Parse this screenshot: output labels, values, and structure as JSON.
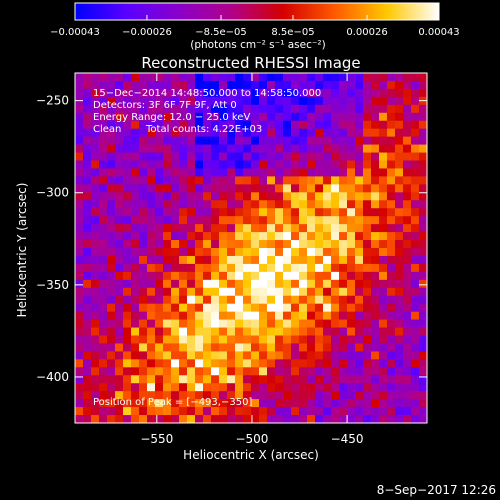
{
  "chart_data": {
    "type": "heatmap",
    "title": "Reconstructed RHESSI Image",
    "xlabel": "Heliocentric X (arcsec)",
    "ylabel": "Heliocentric Y (arcsec)",
    "xlim": [
      -593,
      -408
    ],
    "ylim": [
      -425,
      -235
    ],
    "x_ticks": [
      -550,
      -500,
      -450
    ],
    "x_tick_labels": [
      "−550",
      "−500",
      "−450"
    ],
    "y_ticks": [
      -250,
      -300,
      -350,
      -400
    ],
    "y_tick_labels": [
      "−250",
      "−300",
      "−350",
      "−400"
    ],
    "colorbar": {
      "range": [
        -0.00043,
        0.00043
      ],
      "ticks": [
        -0.00043,
        -0.00026,
        -8.5e-05,
        8.5e-05,
        0.00026,
        0.00043
      ],
      "tick_labels": [
        "−0.00043",
        "−0.00026",
        "−8.5e−05",
        "8.5e−05",
        "0.00026",
        "0.00043"
      ],
      "units_label": "(photons cm⁻² s⁻¹ asec⁻²)",
      "colors": [
        "#0000ff",
        "#5a00ff",
        "#8a00c8",
        "#b0008a",
        "#d40000",
        "#ff5a00",
        "#ffc800",
        "#ffffff"
      ]
    },
    "peak": {
      "x": -493,
      "y": -350
    },
    "annotations": {
      "time_range": "15−Dec−2014 14:48:50.000 to 14:58:50.000",
      "detectors": "Detectors: 3F 6F 7F 9F, Att 0",
      "energy_range": "Energy Range: 12.0 − 25.0 keV",
      "clean": "Clean",
      "total_counts": "Total counts: 4.22E+03",
      "peak_label": "Position of Peak = [−493,−350]"
    }
  },
  "footer": {
    "timestamp": "8−Sep−2017 12:26"
  }
}
